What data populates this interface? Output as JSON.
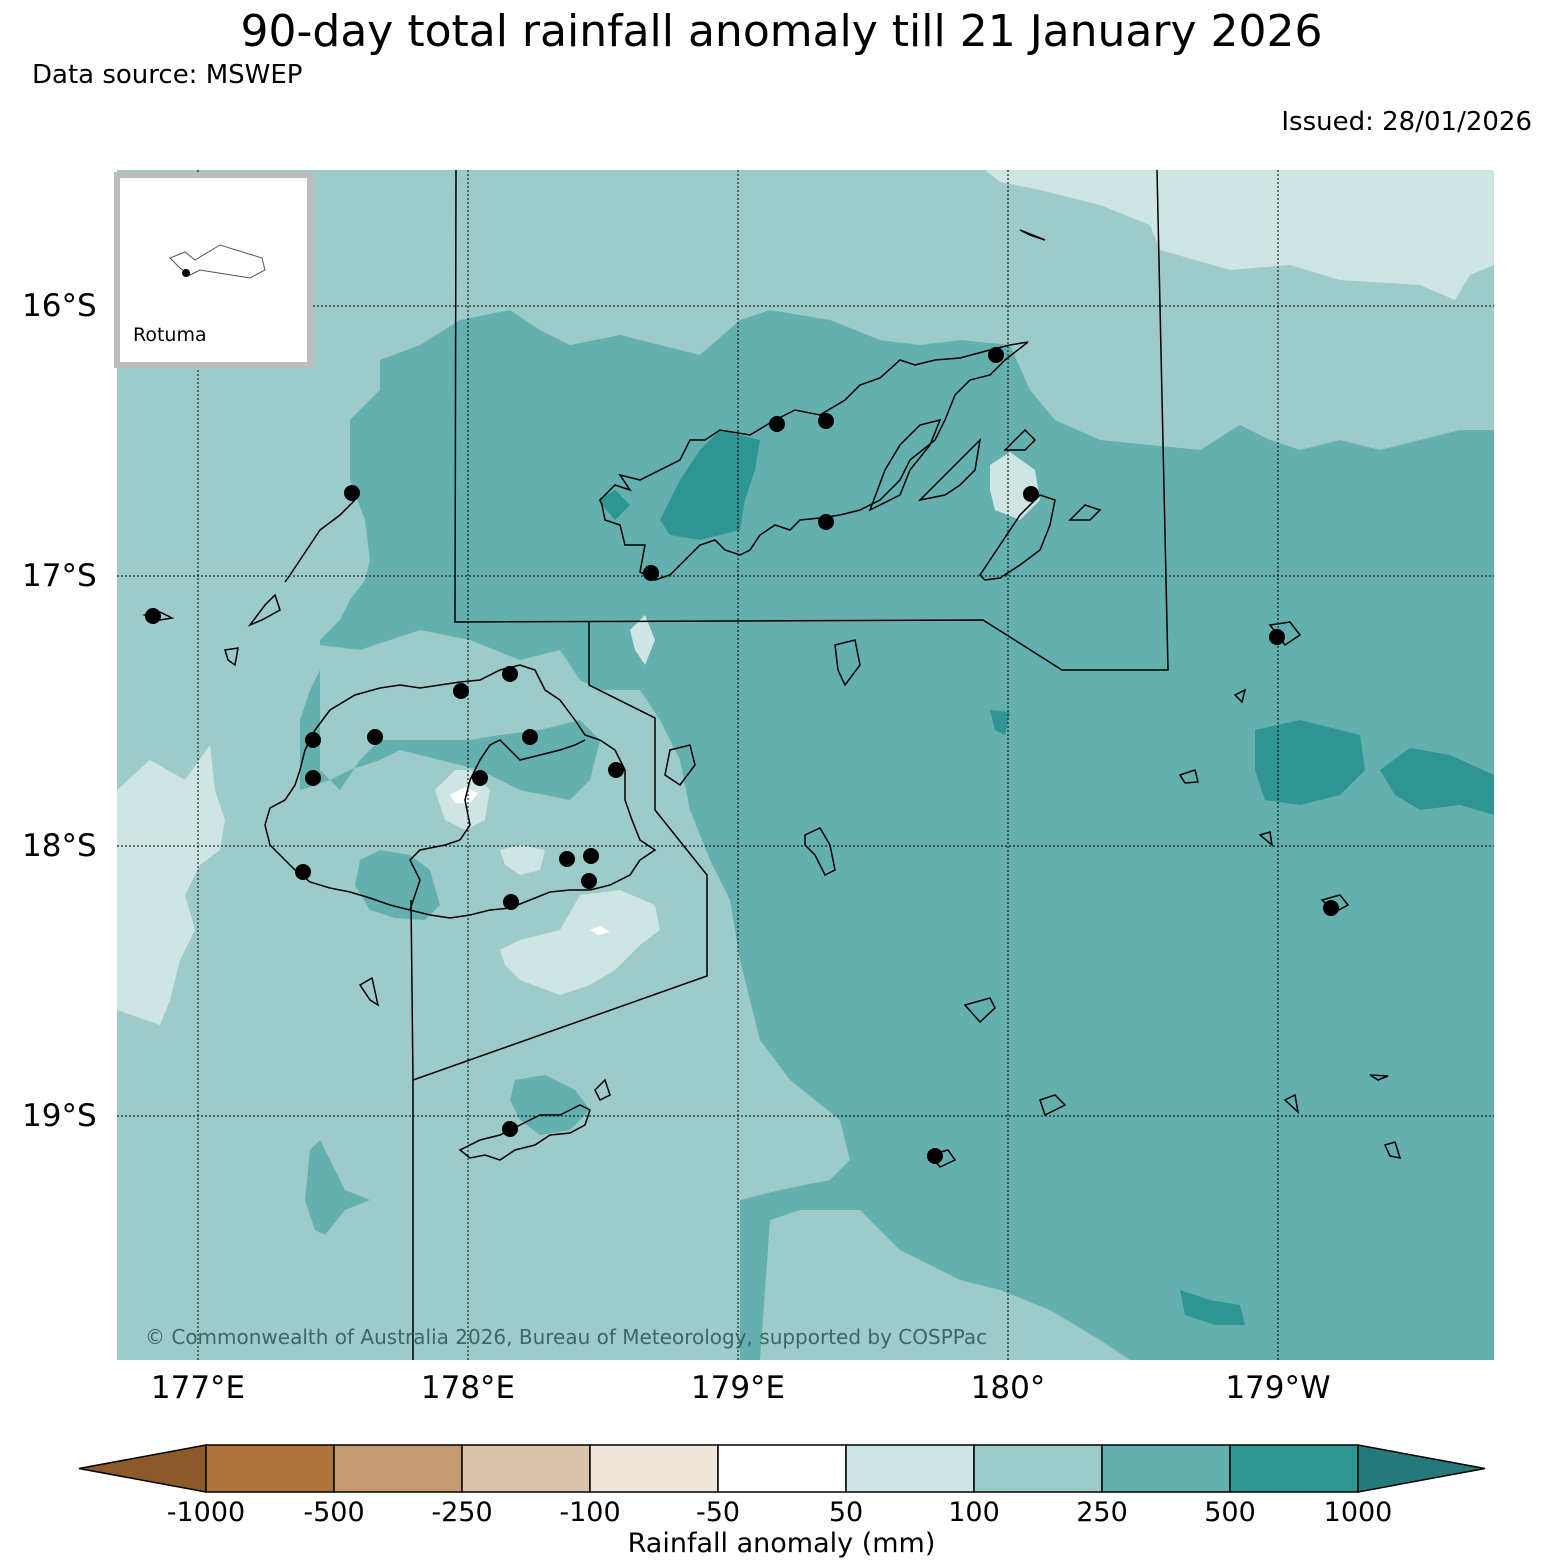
{
  "title": "90-day total rainfall anomaly till 21 January 2026",
  "source": "Data source: MSWEP",
  "issued": "Issued: 28/01/2026",
  "inset_label": "Rotuma",
  "copyright": "© Commonwealth of Australia 2026, Bureau of Meteorology, supported by COSPPac",
  "lat_labels": [
    "16°S",
    "17°S",
    "18°S",
    "19°S"
  ],
  "lon_labels": [
    "177°E",
    "178°E",
    "179°E",
    "180°",
    "179°W"
  ],
  "colorbar": {
    "title": "Rainfall anomaly (mm)",
    "ticks": [
      "-1000",
      "-500",
      "-250",
      "-100",
      "-50",
      "50",
      "100",
      "250",
      "500",
      "1000"
    ],
    "colors": [
      "#8c5a2a",
      "#ad743d",
      "#c49b72",
      "#dcc3ab",
      "#f0e6dc",
      "#ffffff",
      "#cfe5e4",
      "#9ccbca",
      "#63b0af",
      "#2f9592",
      "#26797a"
    ]
  },
  "stations": 27
}
